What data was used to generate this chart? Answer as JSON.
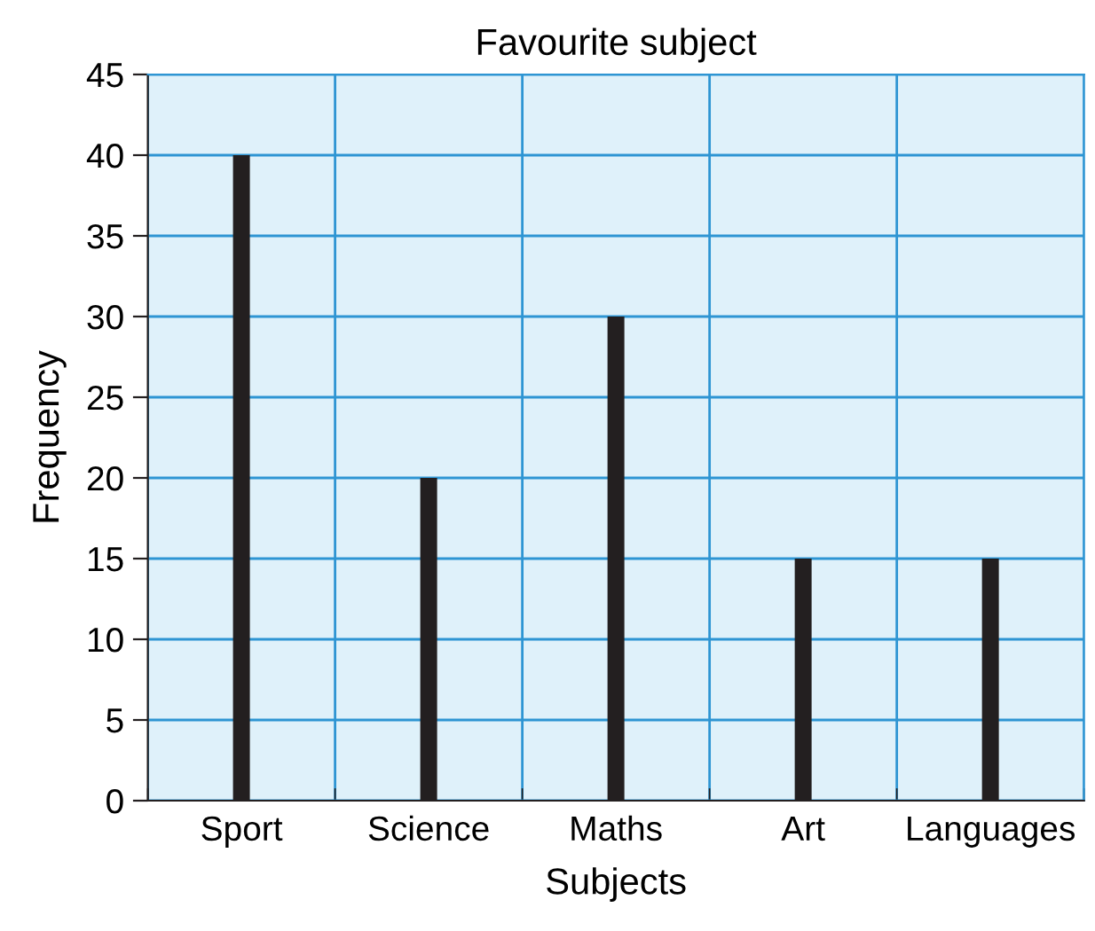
{
  "chart_data": {
    "type": "bar",
    "title": "Favourite subject",
    "xlabel": "Subjects",
    "ylabel": "Frequency",
    "categories": [
      "Sport",
      "Science",
      "Maths",
      "Art",
      "Languages"
    ],
    "values": [
      40,
      20,
      30,
      15,
      15
    ],
    "color": "#231f20",
    "ylim": [
      0,
      45
    ],
    "yticks": [
      0,
      5,
      10,
      15,
      20,
      25,
      30,
      35,
      40,
      45
    ],
    "grid": true
  }
}
